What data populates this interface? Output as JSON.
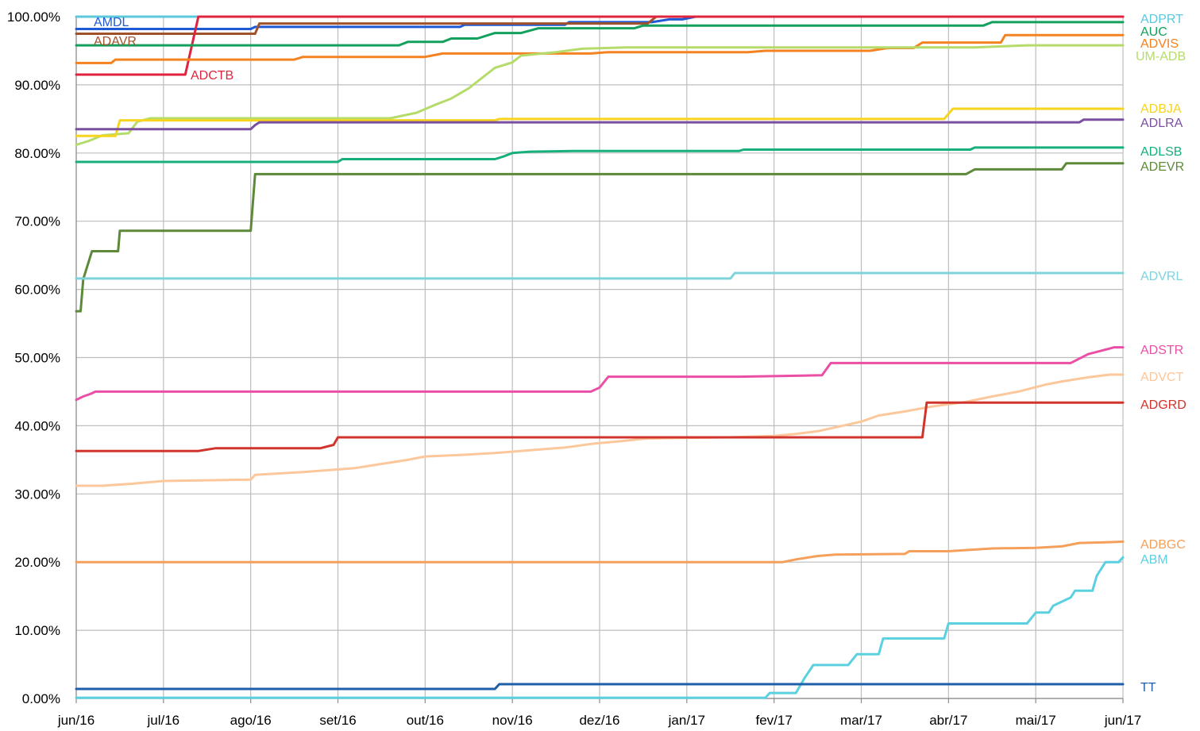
{
  "chart_data": {
    "type": "line",
    "title": "",
    "xlabel": "",
    "ylabel": "",
    "x_ticks": [
      "jun/16",
      "jul/16",
      "ago/16",
      "set/16",
      "out/16",
      "nov/16",
      "dez/16",
      "jan/17",
      "fev/17",
      "mar/17",
      "abr/17",
      "mai/17",
      "jun/17"
    ],
    "ylim": [
      0,
      100
    ],
    "y_ticks": [
      {
        "value": 0,
        "label": "0.00%"
      },
      {
        "value": 10,
        "label": "10.00%"
      },
      {
        "value": 20,
        "label": "20.00%"
      },
      {
        "value": 30,
        "label": "30.00%"
      },
      {
        "value": 40,
        "label": "40.00%"
      },
      {
        "value": 50,
        "label": "50.00%"
      },
      {
        "value": 60,
        "label": "60.00%"
      },
      {
        "value": 70,
        "label": "70.00%"
      },
      {
        "value": 80,
        "label": "80.00%"
      },
      {
        "value": 90,
        "label": "90.00%"
      },
      {
        "value": 100,
        "label": "100.00%"
      }
    ],
    "grid": true,
    "legend": "none",
    "series": [
      {
        "name": "ADPRT",
        "color": "#5bc8dd",
        "label_side": "right",
        "points": [
          [
            0,
            100
          ],
          [
            1.5,
            100
          ],
          [
            1.52,
            100
          ],
          [
            12,
            100
          ]
        ]
      },
      {
        "name": "AMDL",
        "color": "#1f5ad6",
        "label_side": "top-left",
        "points": [
          [
            0,
            98.2
          ],
          [
            2,
            98.2
          ],
          [
            2.05,
            98.5
          ],
          [
            4.4,
            98.5
          ],
          [
            4.45,
            98.8
          ],
          [
            5.6,
            98.8
          ],
          [
            5.65,
            99.2
          ],
          [
            6.6,
            99.2
          ],
          [
            6.8,
            99.6
          ],
          [
            6.95,
            99.6
          ],
          [
            7.1,
            100
          ],
          [
            12,
            100
          ]
        ]
      },
      {
        "name": "ADAVR",
        "color": "#a0522d",
        "label_side": "top-left",
        "points": [
          [
            0,
            97.5
          ],
          [
            2.05,
            97.5
          ],
          [
            2.1,
            99
          ],
          [
            6.55,
            99
          ],
          [
            6.65,
            100
          ],
          [
            12,
            100
          ]
        ]
      },
      {
        "name": "ADCTB",
        "color": "#e0243e",
        "label_side": "below",
        "points": [
          [
            0,
            91.5
          ],
          [
            1.25,
            91.5
          ],
          [
            1.4,
            100
          ],
          [
            12,
            100
          ]
        ]
      },
      {
        "name": "AUC",
        "color": "#12a05c",
        "label_side": "right",
        "points": [
          [
            0,
            95.8
          ],
          [
            3.7,
            95.8
          ],
          [
            3.8,
            96.3
          ],
          [
            4.2,
            96.3
          ],
          [
            4.3,
            96.8
          ],
          [
            4.6,
            96.8
          ],
          [
            4.8,
            97.6
          ],
          [
            5.1,
            97.6
          ],
          [
            5.3,
            98.3
          ],
          [
            6.4,
            98.3
          ],
          [
            6.5,
            98.7
          ],
          [
            10.4,
            98.7
          ],
          [
            10.5,
            99.2
          ],
          [
            12,
            99.2
          ]
        ]
      },
      {
        "name": "ADVIS",
        "color": "#f58220",
        "label_side": "right",
        "points": [
          [
            0,
            93.2
          ],
          [
            0.4,
            93.2
          ],
          [
            0.45,
            93.7
          ],
          [
            2.5,
            93.7
          ],
          [
            2.6,
            94.1
          ],
          [
            4.0,
            94.1
          ],
          [
            4.2,
            94.6
          ],
          [
            5.9,
            94.6
          ],
          [
            6.1,
            94.8
          ],
          [
            7.7,
            94.8
          ],
          [
            7.9,
            95.0
          ],
          [
            9.1,
            95.0
          ],
          [
            9.3,
            95.4
          ],
          [
            9.6,
            95.4
          ],
          [
            9.7,
            96.2
          ],
          [
            10.6,
            96.2
          ],
          [
            10.65,
            97.3
          ],
          [
            12,
            97.3
          ]
        ]
      },
      {
        "name": "UM-ADB",
        "color": "#b5dc6a",
        "label_side": "right",
        "points": [
          [
            0,
            81.2
          ],
          [
            0.15,
            81.8
          ],
          [
            0.3,
            82.6
          ],
          [
            0.6,
            82.9
          ],
          [
            0.7,
            84.6
          ],
          [
            0.85,
            85.1
          ],
          [
            3.6,
            85.1
          ],
          [
            3.9,
            85.9
          ],
          [
            4.1,
            87.0
          ],
          [
            4.3,
            88.0
          ],
          [
            4.5,
            89.5
          ],
          [
            4.7,
            91.5
          ],
          [
            4.8,
            92.5
          ],
          [
            5.0,
            93.3
          ],
          [
            5.1,
            94.3
          ],
          [
            5.5,
            94.8
          ],
          [
            5.8,
            95.3
          ],
          [
            6.3,
            95.5
          ],
          [
            10.3,
            95.5
          ],
          [
            10.9,
            95.8
          ],
          [
            12,
            95.8
          ]
        ]
      },
      {
        "name": "ADBJA",
        "color": "#f6d41f",
        "label_side": "right",
        "points": [
          [
            0,
            82.5
          ],
          [
            0.45,
            82.5
          ],
          [
            0.5,
            84.8
          ],
          [
            4.8,
            84.8
          ],
          [
            4.85,
            85.0
          ],
          [
            9.95,
            85.0
          ],
          [
            10.05,
            86.5
          ],
          [
            12,
            86.5
          ]
        ]
      },
      {
        "name": "ADLRA",
        "color": "#7b4fa0",
        "label_side": "right",
        "points": [
          [
            0,
            83.5
          ],
          [
            2.0,
            83.5
          ],
          [
            2.05,
            84.1
          ],
          [
            2.1,
            84.5
          ],
          [
            11.5,
            84.5
          ],
          [
            11.55,
            84.9
          ],
          [
            12,
            84.9
          ]
        ]
      },
      {
        "name": "ADLSB",
        "color": "#17b07a",
        "label_side": "right",
        "points": [
          [
            0,
            78.7
          ],
          [
            3.0,
            78.7
          ],
          [
            3.05,
            79.1
          ],
          [
            4.8,
            79.1
          ],
          [
            4.9,
            79.5
          ],
          [
            5.0,
            80.0
          ],
          [
            5.2,
            80.2
          ],
          [
            5.7,
            80.3
          ],
          [
            7.6,
            80.3
          ],
          [
            7.65,
            80.5
          ],
          [
            10.25,
            80.5
          ],
          [
            10.3,
            80.8
          ],
          [
            12,
            80.8
          ]
        ]
      },
      {
        "name": "ADEVR",
        "color": "#5c8a3a",
        "label_side": "right",
        "points": [
          [
            0,
            56.8
          ],
          [
            0.05,
            56.8
          ],
          [
            0.08,
            61.5
          ],
          [
            0.18,
            65.6
          ],
          [
            0.48,
            65.6
          ],
          [
            0.5,
            68.6
          ],
          [
            2.0,
            68.6
          ],
          [
            2.05,
            76.9
          ],
          [
            10.2,
            76.9
          ],
          [
            10.3,
            77.6
          ],
          [
            11.3,
            77.6
          ],
          [
            11.35,
            78.5
          ],
          [
            12,
            78.5
          ]
        ]
      },
      {
        "name": "ADVRL",
        "color": "#7fd3db",
        "label_side": "right",
        "points": [
          [
            0,
            61.6
          ],
          [
            7.5,
            61.6
          ],
          [
            7.55,
            62.4
          ],
          [
            12,
            62.4
          ]
        ]
      },
      {
        "name": "ADSTR",
        "color": "#ea4fa5",
        "label_side": "right",
        "points": [
          [
            0,
            43.8
          ],
          [
            0.08,
            44.3
          ],
          [
            0.17,
            44.7
          ],
          [
            0.22,
            45.0
          ],
          [
            5.9,
            45.0
          ],
          [
            6.0,
            45.6
          ],
          [
            6.1,
            47.2
          ],
          [
            7.6,
            47.2
          ],
          [
            8.55,
            47.4
          ],
          [
            8.65,
            49.2
          ],
          [
            11.4,
            49.2
          ],
          [
            11.6,
            50.5
          ],
          [
            11.75,
            51.0
          ],
          [
            11.9,
            51.5
          ],
          [
            12,
            51.5
          ]
        ]
      },
      {
        "name": "ADVCT",
        "color": "#fcc79a",
        "label_side": "right",
        "points": [
          [
            0,
            31.2
          ],
          [
            0.3,
            31.2
          ],
          [
            0.65,
            31.5
          ],
          [
            1.0,
            31.9
          ],
          [
            1.5,
            32.0
          ],
          [
            2.0,
            32.1
          ],
          [
            2.05,
            32.8
          ],
          [
            2.6,
            33.2
          ],
          [
            2.9,
            33.5
          ],
          [
            3.2,
            33.8
          ],
          [
            3.5,
            34.4
          ],
          [
            3.8,
            35.0
          ],
          [
            4.0,
            35.5
          ],
          [
            4.4,
            35.7
          ],
          [
            4.8,
            36.0
          ],
          [
            5.2,
            36.4
          ],
          [
            5.6,
            36.8
          ],
          [
            5.95,
            37.4
          ],
          [
            6.3,
            37.8
          ],
          [
            6.5,
            38.1
          ],
          [
            6.8,
            38.2
          ],
          [
            7.5,
            38.3
          ],
          [
            8.0,
            38.5
          ],
          [
            8.25,
            38.8
          ],
          [
            8.5,
            39.2
          ],
          [
            8.75,
            39.9
          ],
          [
            9.0,
            40.6
          ],
          [
            9.2,
            41.5
          ],
          [
            9.5,
            42.1
          ],
          [
            9.8,
            42.8
          ],
          [
            10.2,
            43.5
          ],
          [
            10.5,
            44.3
          ],
          [
            10.8,
            45.0
          ],
          [
            11.1,
            46.0
          ],
          [
            11.3,
            46.5
          ],
          [
            11.6,
            47.1
          ],
          [
            11.85,
            47.5
          ],
          [
            12,
            47.5
          ]
        ]
      },
      {
        "name": "ADGRD",
        "color": "#d0342c",
        "label_side": "right",
        "points": [
          [
            0,
            36.3
          ],
          [
            1.4,
            36.3
          ],
          [
            1.6,
            36.7
          ],
          [
            2.8,
            36.7
          ],
          [
            2.95,
            37.2
          ],
          [
            3.0,
            38.3
          ],
          [
            9.7,
            38.3
          ],
          [
            9.75,
            43.4
          ],
          [
            12,
            43.4
          ]
        ]
      },
      {
        "name": "ADBGC",
        "color": "#f4a05a",
        "label_side": "right",
        "points": [
          [
            0,
            20.0
          ],
          [
            8.1,
            20.0
          ],
          [
            8.25,
            20.4
          ],
          [
            8.5,
            20.9
          ],
          [
            8.7,
            21.1
          ],
          [
            9.5,
            21.2
          ],
          [
            9.55,
            21.6
          ],
          [
            10.0,
            21.6
          ],
          [
            10.5,
            22.0
          ],
          [
            11.0,
            22.1
          ],
          [
            11.3,
            22.3
          ],
          [
            11.5,
            22.8
          ],
          [
            11.8,
            22.9
          ],
          [
            12,
            23.0
          ]
        ]
      },
      {
        "name": "ABM",
        "color": "#5bd0e0",
        "label_side": "right",
        "points": [
          [
            0,
            0.1
          ],
          [
            7.9,
            0.1
          ],
          [
            7.95,
            0.8
          ],
          [
            8.25,
            0.8
          ],
          [
            8.35,
            3.0
          ],
          [
            8.45,
            4.9
          ],
          [
            8.85,
            4.9
          ],
          [
            8.95,
            6.5
          ],
          [
            9.2,
            6.5
          ],
          [
            9.25,
            8.8
          ],
          [
            9.95,
            8.8
          ],
          [
            10.0,
            11.0
          ],
          [
            10.3,
            11.0
          ],
          [
            10.45,
            11.0
          ],
          [
            10.9,
            11.0
          ],
          [
            11.0,
            12.6
          ],
          [
            11.15,
            12.6
          ],
          [
            11.2,
            13.6
          ],
          [
            11.3,
            14.2
          ],
          [
            11.4,
            14.8
          ],
          [
            11.45,
            15.8
          ],
          [
            11.65,
            15.8
          ],
          [
            11.7,
            18.0
          ],
          [
            11.8,
            20.0
          ],
          [
            11.95,
            20.0
          ],
          [
            12,
            20.7
          ]
        ]
      },
      {
        "name": "TT",
        "color": "#1f5ea8",
        "label_side": "right",
        "points": [
          [
            0,
            1.4
          ],
          [
            4.8,
            1.4
          ],
          [
            4.85,
            2.1
          ],
          [
            12,
            2.1
          ]
        ]
      }
    ]
  }
}
